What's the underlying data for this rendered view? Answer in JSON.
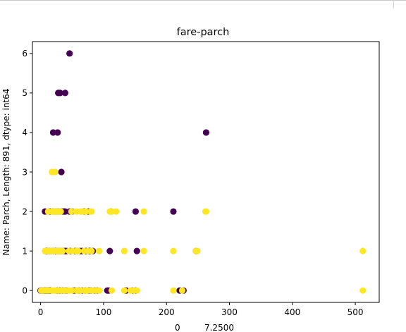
{
  "chart_data": {
    "type": "scatter",
    "title": "fare-parch",
    "xlabel_line1": "0         7.2500",
    "ylabel": "Name: Parch, Length: 891, dtype: int64",
    "xlim": [
      -13,
      538
    ],
    "ylim": [
      -0.3,
      6.3
    ],
    "xticks": [
      0,
      100,
      200,
      300,
      400,
      500
    ],
    "yticks": [
      0,
      1,
      2,
      3,
      4,
      5,
      6
    ],
    "grid": false,
    "series": [
      {
        "color": "#440154",
        "points": [
          [
            0,
            0
          ],
          [
            2,
            0
          ],
          [
            4,
            0
          ],
          [
            6,
            0
          ],
          [
            7,
            0
          ],
          [
            7.25,
            0
          ],
          [
            8,
            0
          ],
          [
            8.5,
            0
          ],
          [
            9,
            0
          ],
          [
            10,
            0
          ],
          [
            11,
            0
          ],
          [
            12,
            0
          ],
          [
            13,
            0
          ],
          [
            14,
            0
          ],
          [
            15,
            0
          ],
          [
            16,
            0
          ],
          [
            26,
            0
          ],
          [
            27,
            0
          ],
          [
            30,
            0
          ],
          [
            31,
            0
          ],
          [
            35,
            0
          ],
          [
            39,
            0
          ],
          [
            41,
            0
          ],
          [
            52,
            0
          ],
          [
            55,
            0
          ],
          [
            61,
            0
          ],
          [
            66,
            0
          ],
          [
            71,
            0
          ],
          [
            76,
            0
          ],
          [
            77,
            0
          ],
          [
            78,
            0
          ],
          [
            80,
            0
          ],
          [
            86,
            0
          ],
          [
            90,
            0
          ],
          [
            106,
            0
          ],
          [
            108,
            0
          ],
          [
            134,
            0
          ],
          [
            136,
            0
          ],
          [
            146,
            0
          ],
          [
            151,
            0
          ],
          [
            221,
            0
          ],
          [
            227,
            0
          ],
          [
            8,
            1
          ],
          [
            10,
            1
          ],
          [
            13,
            1
          ],
          [
            16,
            1
          ],
          [
            20,
            1
          ],
          [
            24,
            1
          ],
          [
            27,
            1
          ],
          [
            30,
            1
          ],
          [
            33,
            1
          ],
          [
            36,
            1
          ],
          [
            39,
            1
          ],
          [
            41,
            1
          ],
          [
            47,
            1
          ],
          [
            55,
            1
          ],
          [
            58,
            1
          ],
          [
            63,
            1
          ],
          [
            66,
            1
          ],
          [
            72,
            1
          ],
          [
            77,
            1
          ],
          [
            79,
            1
          ],
          [
            83,
            1
          ],
          [
            110,
            1
          ],
          [
            153,
            1
          ],
          [
            247,
            1
          ],
          [
            7,
            2
          ],
          [
            15,
            2
          ],
          [
            19,
            2
          ],
          [
            22,
            2
          ],
          [
            25,
            2
          ],
          [
            28,
            2
          ],
          [
            31,
            2
          ],
          [
            34,
            2
          ],
          [
            37,
            2
          ],
          [
            39,
            2
          ],
          [
            46,
            2
          ],
          [
            50,
            2
          ],
          [
            69,
            2
          ],
          [
            76,
            2
          ],
          [
            112,
            2
          ],
          [
            151,
            2
          ],
          [
            211,
            2
          ],
          [
            33,
            3
          ],
          [
            20,
            4
          ],
          [
            27,
            4
          ],
          [
            263,
            4
          ],
          [
            28,
            5
          ],
          [
            31,
            5
          ],
          [
            39,
            5
          ],
          [
            46,
            6
          ]
        ]
      },
      {
        "color": "#fde725",
        "points": [
          [
            1,
            0
          ],
          [
            3,
            0
          ],
          [
            5,
            0
          ],
          [
            7.5,
            0
          ],
          [
            9.5,
            0
          ],
          [
            10.5,
            0
          ],
          [
            12.5,
            0
          ],
          [
            17,
            0
          ],
          [
            20,
            0
          ],
          [
            22,
            0
          ],
          [
            23,
            0
          ],
          [
            25,
            0
          ],
          [
            28,
            0
          ],
          [
            29,
            0
          ],
          [
            33,
            0
          ],
          [
            37,
            0
          ],
          [
            40,
            0
          ],
          [
            45,
            0
          ],
          [
            50,
            0
          ],
          [
            57,
            0
          ],
          [
            59,
            0
          ],
          [
            63,
            0
          ],
          [
            69,
            0
          ],
          [
            73,
            0
          ],
          [
            75,
            0
          ],
          [
            79,
            0
          ],
          [
            83,
            0
          ],
          [
            88,
            0
          ],
          [
            93,
            0
          ],
          [
            113,
            0
          ],
          [
            133,
            0
          ],
          [
            143,
            0
          ],
          [
            148,
            0
          ],
          [
            153,
            0
          ],
          [
            211,
            0
          ],
          [
            225,
            0
          ],
          [
            512,
            0
          ],
          [
            7,
            1
          ],
          [
            12,
            1
          ],
          [
            15,
            1
          ],
          [
            18,
            1
          ],
          [
            21,
            1
          ],
          [
            26,
            1
          ],
          [
            29,
            1
          ],
          [
            32,
            1
          ],
          [
            35,
            1
          ],
          [
            45,
            1
          ],
          [
            51,
            1
          ],
          [
            57,
            1
          ],
          [
            60,
            1
          ],
          [
            69,
            1
          ],
          [
            75,
            1
          ],
          [
            81,
            1
          ],
          [
            93,
            1
          ],
          [
            133,
            1
          ],
          [
            164,
            1
          ],
          [
            211,
            1
          ],
          [
            247,
            1
          ],
          [
            249,
            1
          ],
          [
            512,
            1
          ],
          [
            12,
            2
          ],
          [
            18,
            2
          ],
          [
            21,
            2
          ],
          [
            23,
            2
          ],
          [
            26,
            2
          ],
          [
            29,
            2
          ],
          [
            32,
            2
          ],
          [
            49,
            2
          ],
          [
            57,
            2
          ],
          [
            64,
            2
          ],
          [
            67,
            2
          ],
          [
            72,
            2
          ],
          [
            79,
            2
          ],
          [
            81,
            2
          ],
          [
            110,
            2
          ],
          [
            113,
            2
          ],
          [
            120,
            2
          ],
          [
            164,
            2
          ],
          [
            262,
            2
          ],
          [
            263,
            2
          ],
          [
            18,
            3
          ],
          [
            23,
            3
          ]
        ]
      }
    ]
  }
}
